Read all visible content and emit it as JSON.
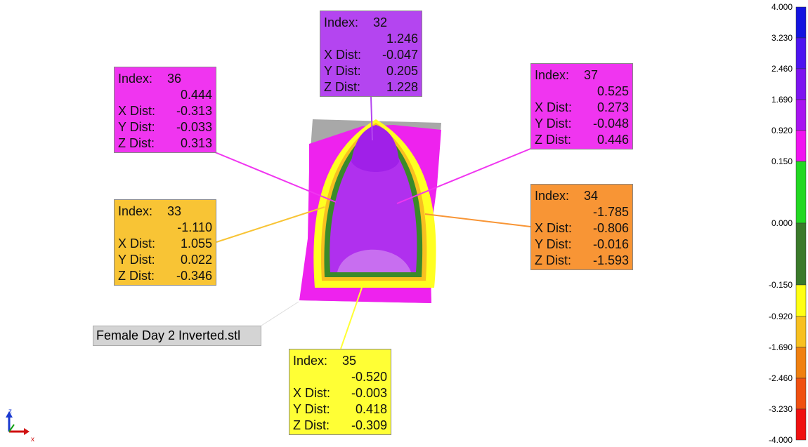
{
  "model_label": "Female Day 2 Inverted.stl",
  "axis_labels": [
    "z",
    "x"
  ],
  "callouts": [
    {
      "index_label": "Index:",
      "index": "32",
      "total": "1.246",
      "color": "#b445f0",
      "rows": [
        {
          "label": "X Dist:",
          "value": "-0.047"
        },
        {
          "label": "Y Dist:",
          "value": "0.205"
        },
        {
          "label": "Z Dist:",
          "value": "1.228"
        }
      ]
    },
    {
      "index_label": "Index:",
      "index": "36",
      "total": "0.444",
      "color": "#f035f0",
      "rows": [
        {
          "label": "X Dist:",
          "value": "-0.313"
        },
        {
          "label": "Y Dist:",
          "value": "-0.033"
        },
        {
          "label": "Z Dist:",
          "value": "0.313"
        }
      ]
    },
    {
      "index_label": "Index:",
      "index": "37",
      "total": "0.525",
      "color": "#f035f0",
      "rows": [
        {
          "label": "X Dist:",
          "value": "0.273"
        },
        {
          "label": "Y Dist:",
          "value": "-0.048"
        },
        {
          "label": "Z Dist:",
          "value": "0.446"
        }
      ]
    },
    {
      "index_label": "Index:",
      "index": "33",
      "total": "-1.110",
      "color": "#f8c435",
      "rows": [
        {
          "label": "X Dist:",
          "value": "1.055"
        },
        {
          "label": "Y Dist:",
          "value": "0.022"
        },
        {
          "label": "Z Dist:",
          "value": "-0.346"
        }
      ]
    },
    {
      "index_label": "Index:",
      "index": "34",
      "total": "-1.785",
      "color": "#f89535",
      "rows": [
        {
          "label": "X Dist:",
          "value": "-0.806"
        },
        {
          "label": "Y Dist:",
          "value": "-0.016"
        },
        {
          "label": "Z Dist:",
          "value": "-1.593"
        }
      ]
    },
    {
      "index_label": "Index:",
      "index": "35",
      "total": "-0.520",
      "color": "#ffff35",
      "rows": [
        {
          "label": "X Dist:",
          "value": "-0.003"
        },
        {
          "label": "Y Dist:",
          "value": "0.418"
        },
        {
          "label": "Z Dist:",
          "value": "-0.309"
        }
      ]
    }
  ],
  "color_scale": {
    "labels": [
      "4.000",
      "3.230",
      "2.460",
      "1.690",
      "0.920",
      "0.150",
      "0.000",
      "-0.150",
      "-0.920",
      "-1.690",
      "-2.460",
      "-3.230",
      "-4.000"
    ],
    "colors": [
      "#1414e0",
      "#4d14f0",
      "#7d14f0",
      "#a814f0",
      "#f014f0",
      "#22d822",
      "#3a7a2a",
      "#ffff14",
      "#f8c020",
      "#f08010",
      "#f05010",
      "#f01010"
    ]
  }
}
